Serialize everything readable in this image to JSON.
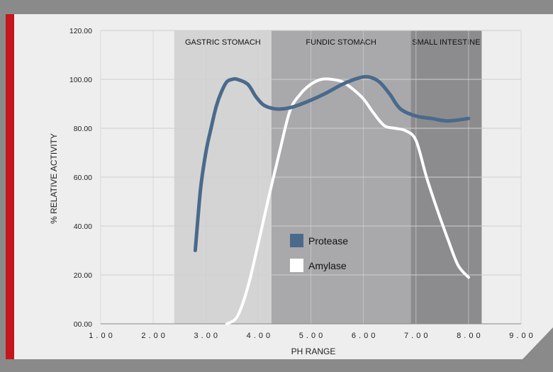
{
  "colors": {
    "frame": "#8a8a8a",
    "accent_bar": "#c4161c",
    "plot_bg": "#eeeeee",
    "grid": "#cfcfcf",
    "region_gastric": "#d4d4d4",
    "region_fundic": "#a9a9ab",
    "region_intestine": "#8c8c8e",
    "protease": "#4a6a8c",
    "amylase": "#ffffff"
  },
  "chart_data": {
    "type": "line",
    "xlabel": "PH RANGE",
    "ylabel": "% RELATIVE ACTIVITY",
    "xlim": [
      1,
      9
    ],
    "ylim": [
      0,
      120
    ],
    "x_ticks": [
      "1.00",
      "2.00",
      "3.00",
      "4.00",
      "5.00",
      "6.00",
      "7.00",
      "8.00",
      "9.00"
    ],
    "y_ticks": [
      "00.00",
      "20.00",
      "40.00",
      "60.00",
      "80.00",
      "100.00",
      "120.00"
    ],
    "grid": true,
    "legend_position": "center",
    "regions": [
      {
        "label": "GASTRIC STOMACH",
        "x_start": 2.4,
        "x_end": 4.25
      },
      {
        "label": "FUNDIC STOMACH",
        "x_start": 4.25,
        "x_end": 6.9
      },
      {
        "label": "SMALL INTESTINE",
        "x_start": 6.9,
        "x_end": 8.25
      }
    ],
    "series": [
      {
        "name": "Protease",
        "x": [
          2.8,
          2.9,
          3.0,
          3.1,
          3.2,
          3.3,
          3.4,
          3.5,
          3.6,
          3.8,
          3.95,
          4.1,
          4.3,
          4.5,
          4.7,
          5.0,
          5.3,
          5.6,
          5.9,
          6.1,
          6.3,
          6.5,
          6.7,
          7.0,
          7.3,
          7.6,
          8.0
        ],
        "values": [
          30,
          55,
          70,
          80,
          89,
          95,
          99,
          100,
          100,
          98,
          93,
          89.5,
          88,
          88,
          89,
          91.5,
          94.5,
          98,
          100.5,
          101,
          99,
          94,
          88,
          85,
          84,
          83,
          84
        ]
      },
      {
        "name": "Amylase",
        "x": [
          3.4,
          3.6,
          3.8,
          4.0,
          4.2,
          4.4,
          4.6,
          4.8,
          5.0,
          5.2,
          5.4,
          5.6,
          5.8,
          6.0,
          6.2,
          6.4,
          6.6,
          6.8,
          7.0,
          7.2,
          7.4,
          7.6,
          7.8,
          8.0
        ],
        "values": [
          0,
          3,
          15,
          33,
          52,
          70,
          87,
          94,
          98,
          100,
          100,
          99,
          96,
          92,
          86,
          81,
          80,
          79,
          75,
          60,
          47,
          35,
          24,
          19
        ]
      }
    ]
  }
}
